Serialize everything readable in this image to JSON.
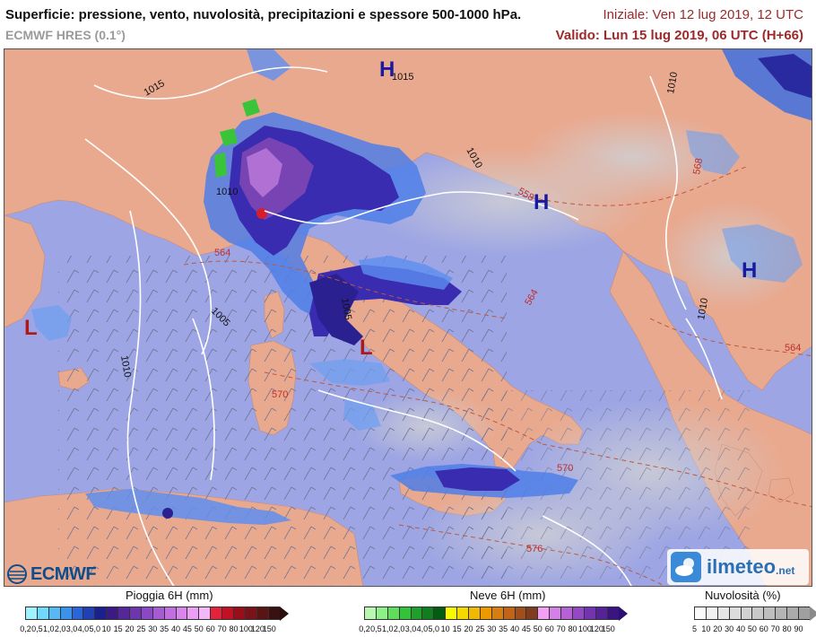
{
  "header": {
    "title": "Superficie: pressione, vento, nuvolosità, precipitazioni e spessore 500-1000 hPa.",
    "model": "ECMWF HRES (0.1°)",
    "init": "Iniziale: Ven 12 lug 2019, 12 UTC",
    "valid": "Valido: Lun 15 lug 2019, 06 UTC (H+66)"
  },
  "map": {
    "pressure_centers": [
      {
        "type": "H",
        "color": "#1a1aa0"
      },
      {
        "type": "H",
        "color": "#1a1aa0"
      },
      {
        "type": "H",
        "color": "#1a1aa0"
      },
      {
        "type": "L",
        "color": "#b01818"
      },
      {
        "type": "L",
        "color": "#b01818"
      }
    ],
    "isobar_labels": [
      "1015",
      "1015",
      "1010",
      "1010",
      "1010",
      "1010",
      "1010",
      "1005",
      "1005",
      "1010"
    ],
    "thickness_labels": [
      "564",
      "564",
      "564",
      "568",
      "570",
      "570",
      "576",
      "558",
      "558",
      "564"
    ]
  },
  "logos": {
    "ecmwf": "ECMWF",
    "ilmeteo": "ilmeteo",
    "ilmeteo_suffix": ".net"
  },
  "legend": {
    "rain": {
      "title": "Pioggia 6H (mm)",
      "ticks": [
        "0,2",
        "0,5",
        "1,0",
        "2,0",
        "3,0",
        "4,0",
        "5,0",
        "10",
        "15",
        "20",
        "25",
        "30",
        "35",
        "40",
        "45",
        "50",
        "60",
        "70",
        "80",
        "100",
        "120",
        "150"
      ],
      "colors": [
        "#9ff3ff",
        "#72d8fb",
        "#56b9f6",
        "#3b92ea",
        "#2a66d8",
        "#2040b8",
        "#1a2090",
        "#3b1a86",
        "#55289a",
        "#6e36ae",
        "#8a48c4",
        "#a65ad4",
        "#c06ee0",
        "#d886ec",
        "#ea9ef4",
        "#f2b8f8",
        "#e6223a",
        "#c01222",
        "#9a0e1a",
        "#7a121a",
        "#5a1414",
        "#3a1010"
      ]
    },
    "snow": {
      "title": "Neve 6H (mm)",
      "ticks": [
        "0,2",
        "0,5",
        "1,0",
        "2,0",
        "3,0",
        "4,0",
        "5,0",
        "10",
        "15",
        "20",
        "25",
        "30",
        "35",
        "40",
        "45",
        "50",
        "60",
        "70",
        "80",
        "100",
        "120",
        "150"
      ],
      "colors": [
        "#b8f8b0",
        "#8ef088",
        "#5ede5a",
        "#34c23a",
        "#1ea02a",
        "#0e7e1e",
        "#045c12",
        "#f8f800",
        "#f4d800",
        "#f0b800",
        "#ec9a00",
        "#d87e10",
        "#c06418",
        "#a04e1c",
        "#803c1e",
        "#f2a0f2",
        "#d480e6",
        "#b462d6",
        "#9448c4",
        "#7434b0",
        "#56229a",
        "#3a1480"
      ]
    },
    "clouds": {
      "title": "Nuvolosità (%)",
      "ticks": [
        "5",
        "10",
        "20",
        "30",
        "40",
        "50",
        "60",
        "70",
        "80",
        "90"
      ],
      "colors": [
        "#fafafa",
        "#f0f0f0",
        "#e6e6e6",
        "#dcdcdc",
        "#d2d2d2",
        "#c8c8c8",
        "#bebebe",
        "#b4b4b4",
        "#aaaaaa",
        "#a0a0a0"
      ]
    }
  }
}
